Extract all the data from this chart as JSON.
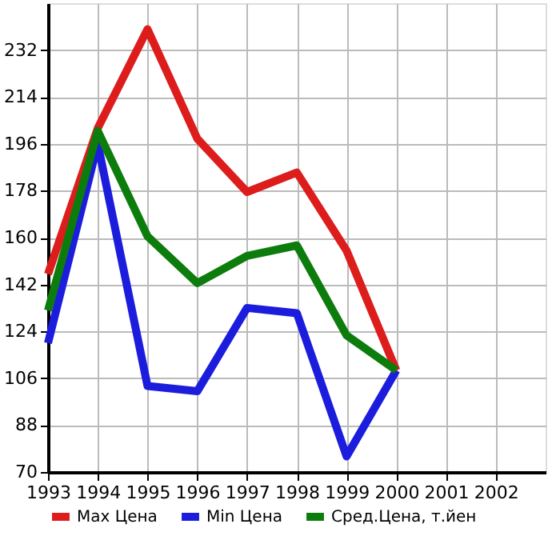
{
  "chart_data": {
    "type": "line",
    "x": [
      1993,
      1994,
      1995,
      1996,
      1997,
      1998,
      1999,
      2000
    ],
    "series": [
      {
        "name": "Max Цена",
        "color": "#dd1c1c",
        "values": [
          146,
          202,
          240,
          198,
          177.5,
          185,
          155,
          109
        ]
      },
      {
        "name": "Min Цена",
        "color": "#1c1cdd",
        "values": [
          119.5,
          196,
          103,
          101,
          133,
          131,
          76,
          109
        ]
      },
      {
        "name": "Сред.Цена, т.йен",
        "color": "#0c7d0c",
        "values": [
          132,
          201,
          160.5,
          142.5,
          153,
          157,
          122.5,
          109
        ]
      }
    ],
    "xlim": [
      1993,
      2003
    ],
    "xticks": [
      1993,
      1994,
      1995,
      1996,
      1997,
      1998,
      1999,
      2000,
      2001,
      2002
    ],
    "ylim": [
      70,
      250
    ],
    "yticks": [
      70,
      88,
      106,
      124,
      142,
      160,
      178,
      196,
      214,
      232
    ],
    "grid": true,
    "legend": "bottom",
    "marker": "none",
    "line_style": "solid"
  }
}
